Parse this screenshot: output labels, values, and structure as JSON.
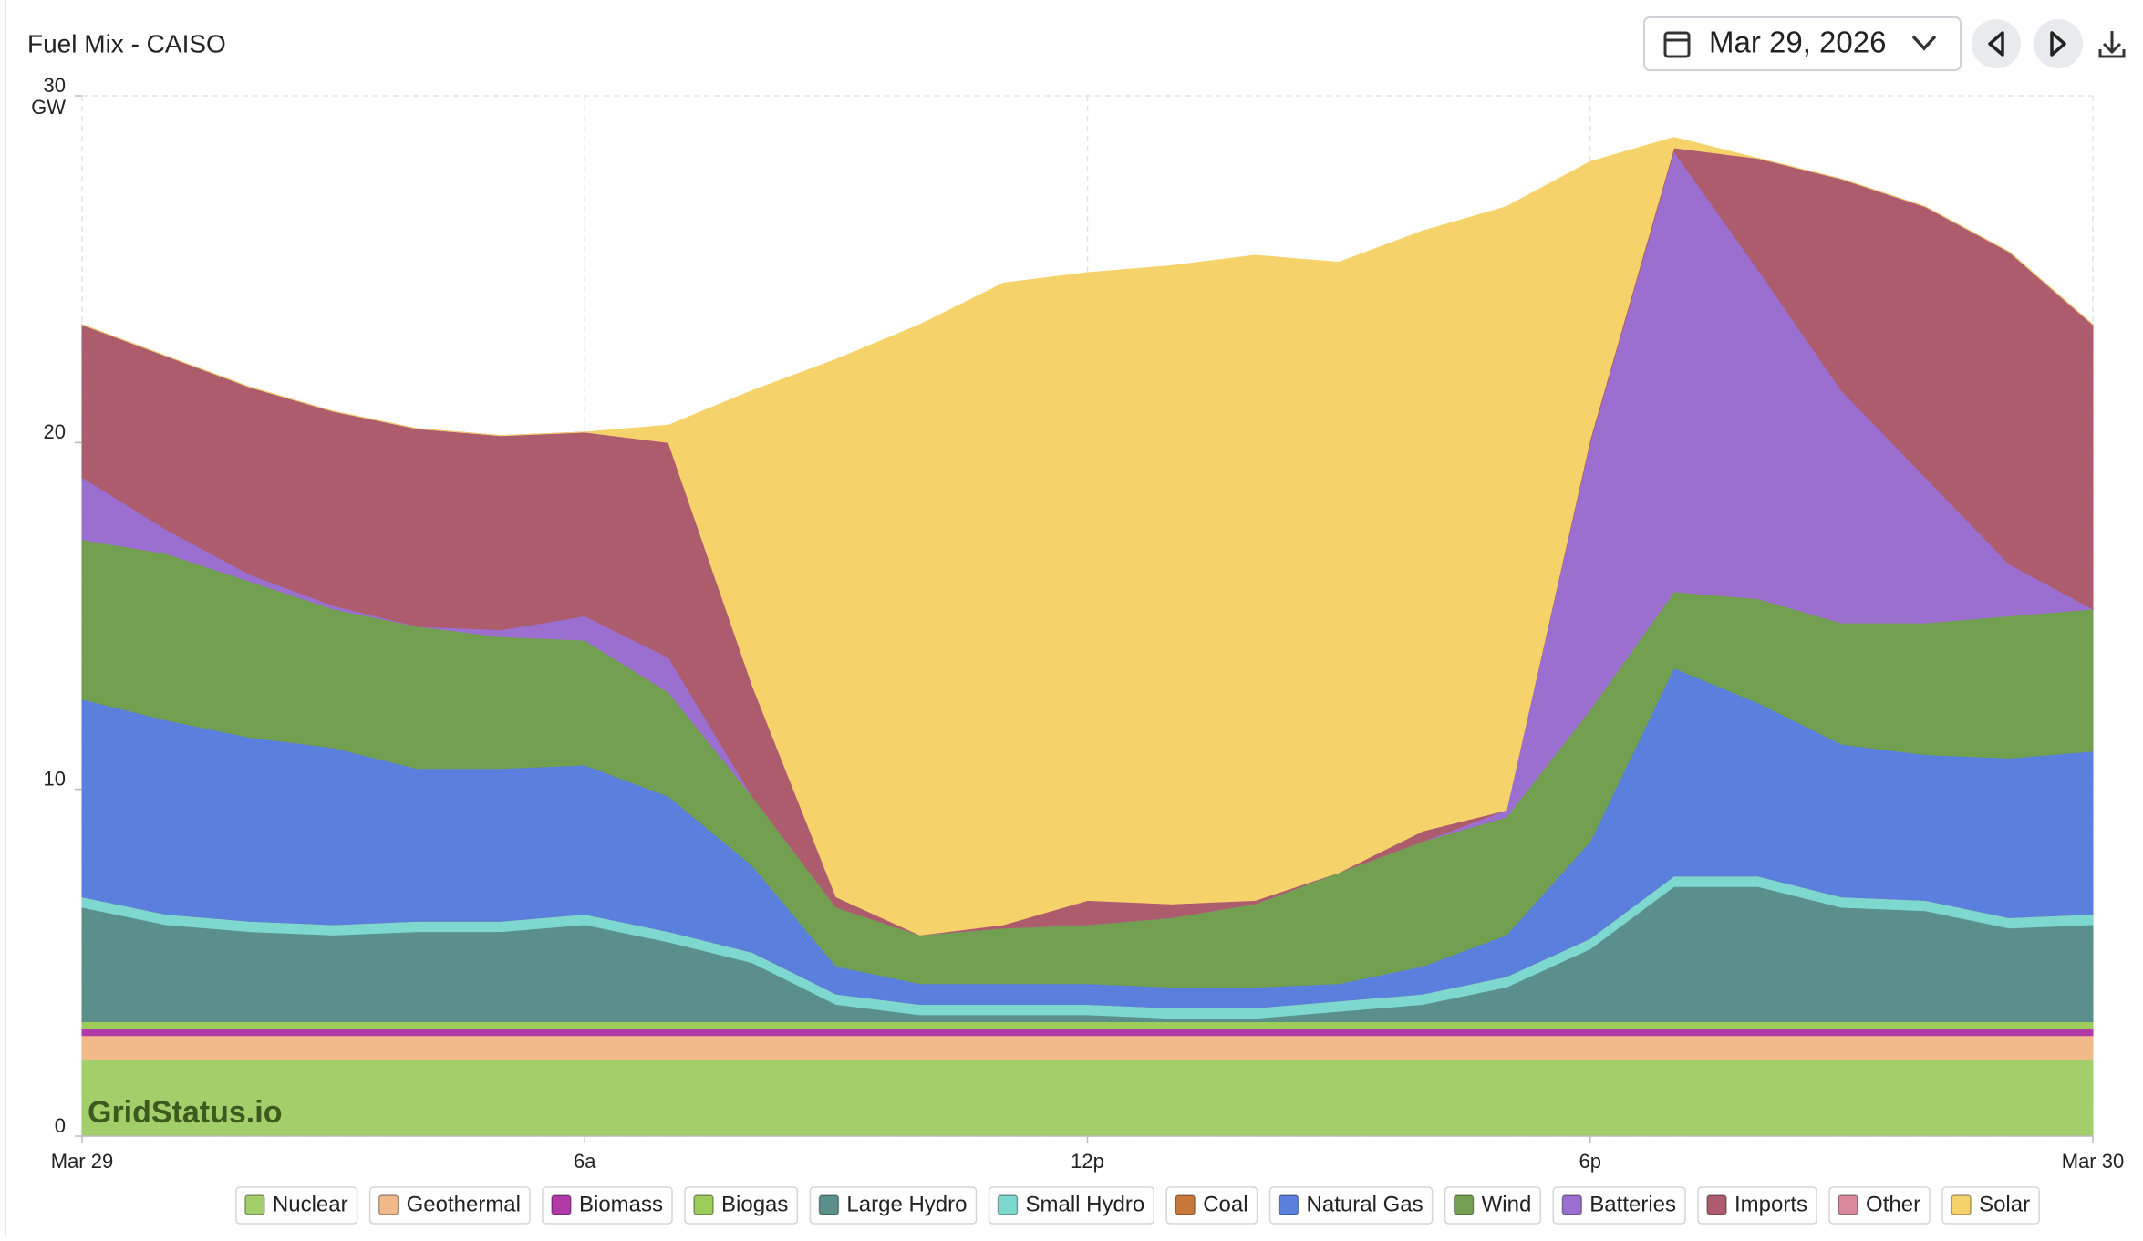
{
  "header": {
    "title": "Fuel Mix - CAISO",
    "date": "Mar 29, 2026"
  },
  "watermark": "GridStatus.io",
  "chart_data": {
    "type": "area",
    "stacked": true,
    "y_label": "GW",
    "x": [
      0,
      1,
      2,
      3,
      4,
      5,
      6,
      7,
      8,
      9,
      10,
      11,
      12,
      13,
      14,
      15,
      16,
      17,
      18,
      19,
      20,
      21,
      22,
      23,
      24
    ],
    "xlim": [
      0,
      24
    ],
    "xticks": [
      {
        "value": 0,
        "label": "Mar 29"
      },
      {
        "value": 6,
        "label": "6a"
      },
      {
        "value": 12,
        "label": "12p"
      },
      {
        "value": 18,
        "label": "6p"
      },
      {
        "value": 24,
        "label": "Mar 30"
      }
    ],
    "ylim": [
      0,
      30
    ],
    "yticks": [
      0,
      10,
      20,
      30
    ],
    "grid": true,
    "series": [
      {
        "name": "Nuclear",
        "color": "#a3cf6b",
        "values": [
          2.2,
          2.2,
          2.2,
          2.2,
          2.2,
          2.2,
          2.2,
          2.2,
          2.2,
          2.2,
          2.2,
          2.2,
          2.2,
          2.2,
          2.2,
          2.2,
          2.2,
          2.2,
          2.2,
          2.2,
          2.2,
          2.2,
          2.2,
          2.2,
          2.2
        ]
      },
      {
        "name": "Geothermal",
        "color": "#f2b98a",
        "values": [
          0.7,
          0.7,
          0.7,
          0.7,
          0.7,
          0.7,
          0.7,
          0.7,
          0.7,
          0.7,
          0.7,
          0.7,
          0.7,
          0.7,
          0.7,
          0.7,
          0.7,
          0.7,
          0.7,
          0.7,
          0.7,
          0.7,
          0.7,
          0.7,
          0.7
        ]
      },
      {
        "name": "Biomass",
        "color": "#b03aa8",
        "values": [
          0.2,
          0.2,
          0.2,
          0.2,
          0.2,
          0.2,
          0.2,
          0.2,
          0.2,
          0.2,
          0.2,
          0.2,
          0.2,
          0.2,
          0.2,
          0.2,
          0.2,
          0.2,
          0.2,
          0.2,
          0.2,
          0.2,
          0.2,
          0.2,
          0.2
        ]
      },
      {
        "name": "Biogas",
        "color": "#9ccc5a",
        "values": [
          0.2,
          0.2,
          0.2,
          0.2,
          0.2,
          0.2,
          0.2,
          0.2,
          0.2,
          0.2,
          0.2,
          0.2,
          0.2,
          0.2,
          0.2,
          0.2,
          0.2,
          0.2,
          0.2,
          0.2,
          0.2,
          0.2,
          0.2,
          0.2,
          0.2
        ]
      },
      {
        "name": "Large Hydro",
        "color": "#5a8f8c",
        "values": [
          3.3,
          2.8,
          2.6,
          2.5,
          2.6,
          2.6,
          2.8,
          2.3,
          1.7,
          0.5,
          0.2,
          0.2,
          0.2,
          0.1,
          0.1,
          0.3,
          0.5,
          1.0,
          2.1,
          3.9,
          3.9,
          3.3,
          3.2,
          2.7,
          2.8
        ]
      },
      {
        "name": "Small Hydro",
        "color": "#7dd8cf",
        "values": [
          0.3,
          0.3,
          0.3,
          0.3,
          0.3,
          0.3,
          0.3,
          0.3,
          0.3,
          0.3,
          0.3,
          0.3,
          0.3,
          0.3,
          0.3,
          0.3,
          0.3,
          0.3,
          0.3,
          0.3,
          0.3,
          0.3,
          0.3,
          0.3,
          0.3
        ]
      },
      {
        "name": "Coal",
        "color": "#c8773a",
        "values": [
          0,
          0,
          0,
          0,
          0,
          0,
          0,
          0,
          0,
          0,
          0,
          0,
          0,
          0,
          0,
          0,
          0,
          0,
          0,
          0,
          0,
          0,
          0,
          0,
          0
        ]
      },
      {
        "name": "Natural Gas",
        "color": "#5b7fdc",
        "values": [
          5.7,
          5.6,
          5.3,
          5.1,
          4.4,
          4.4,
          4.3,
          3.9,
          2.5,
          0.8,
          0.6,
          0.6,
          0.6,
          0.6,
          0.6,
          0.5,
          0.8,
          1.2,
          2.8,
          6.0,
          5.0,
          4.4,
          4.2,
          4.6,
          4.7
        ]
      },
      {
        "name": "Wind",
        "color": "#739f50",
        "values": [
          4.6,
          4.8,
          4.5,
          4.0,
          4.1,
          3.8,
          3.6,
          3.0,
          2.0,
          1.7,
          1.4,
          1.6,
          1.7,
          2.0,
          2.4,
          3.2,
          3.6,
          3.4,
          3.8,
          2.2,
          3.0,
          3.5,
          3.8,
          4.1,
          4.1
        ]
      },
      {
        "name": "Batteries",
        "color": "#9b6fd0",
        "values": [
          1.8,
          0.7,
          0.2,
          0.1,
          0,
          0.2,
          0.7,
          1.0,
          0,
          0,
          0,
          0,
          0,
          0,
          0,
          0,
          0,
          0.2,
          7.7,
          12.7,
          9.5,
          6.7,
          4.2,
          1.5,
          0
        ]
      },
      {
        "name": "Imports",
        "color": "#ad5c6e",
        "values": [
          4.4,
          5.0,
          5.4,
          5.6,
          5.7,
          5.6,
          5.3,
          6.2,
          3.2,
          0.3,
          0,
          0.1,
          0.7,
          0.4,
          0.1,
          0,
          0.3,
          0,
          0.1,
          0.1,
          3.2,
          6.1,
          7.8,
          9.0,
          8.2
        ]
      },
      {
        "name": "Other",
        "color": "#d98a9a",
        "values": [
          0,
          0,
          0,
          0,
          0,
          0,
          0,
          0,
          0,
          0,
          0,
          0,
          0,
          0,
          0,
          0,
          0,
          0,
          0,
          0,
          0,
          0,
          0,
          0,
          0
        ]
      },
      {
        "name": "Solar",
        "color": "#f6d36a",
        "values": [
          0,
          0,
          0,
          0,
          0,
          0,
          0,
          0.5,
          8.5,
          15.5,
          17.6,
          18.5,
          18.1,
          18.4,
          18.6,
          17.6,
          17.3,
          17.4,
          8.0,
          0.3,
          0,
          0,
          0,
          0,
          0
        ]
      }
    ]
  }
}
